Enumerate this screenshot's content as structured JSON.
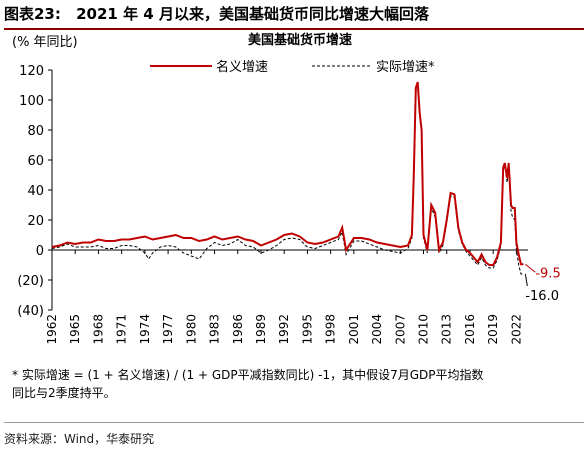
{
  "header": {
    "figure_label": "图表23:",
    "figure_title": "2021 年 4 月以来，美国基础货币同比增速大幅回落"
  },
  "chart_data": {
    "type": "line",
    "title": "美国基础货币增速",
    "ylabel": "(% 年同比)",
    "ylim": [
      -40,
      120
    ],
    "yticks": [
      120,
      100,
      80,
      60,
      40,
      20,
      0,
      -20,
      -40
    ],
    "ytick_labels": [
      "120",
      "100",
      "80",
      "60",
      "40",
      "20",
      "0",
      "(20)",
      "(40)"
    ],
    "xlim": [
      1962,
      2023.5
    ],
    "xticks": [
      1962,
      1965,
      1968,
      1971,
      1974,
      1977,
      1980,
      1983,
      1986,
      1989,
      1992,
      1995,
      1998,
      2001,
      2004,
      2007,
      2010,
      2013,
      2016,
      2019,
      2022
    ],
    "grid": false,
    "legend": "top",
    "series": [
      {
        "name": "名义增速",
        "color": "#c00000",
        "style": "solid",
        "x": [
          1962,
          1963,
          1964,
          1965,
          1966,
          1967,
          1968,
          1969,
          1970,
          1971,
          1972,
          1973,
          1974,
          1974.5,
          1975,
          1976,
          1977,
          1978,
          1979,
          1980,
          1981,
          1982,
          1983,
          1984,
          1985,
          1986,
          1987,
          1988,
          1989,
          1990,
          1991,
          1992,
          1993,
          1994,
          1995,
          1996,
          1997,
          1998,
          1999,
          1999.5,
          2000,
          2001,
          2002,
          2003,
          2004,
          2005,
          2006,
          2007,
          2008,
          2008.5,
          2008.75,
          2009.0,
          2009.25,
          2009.5,
          2009.75,
          2010,
          2010.5,
          2011,
          2011.5,
          2012,
          2012.5,
          2013,
          2013.5,
          2014,
          2014.5,
          2015,
          2015.5,
          2016,
          2016.5,
          2017,
          2017.5,
          2018,
          2018.5,
          2019,
          2019.5,
          2020,
          2020.3,
          2020.5,
          2020.8,
          2021,
          2021.3,
          2021.5,
          2021.8,
          2022,
          2022.3,
          2022.6,
          2022.9
        ],
        "y": [
          2,
          3,
          5,
          4,
          5,
          5,
          7,
          6,
          6,
          7,
          7,
          8,
          9,
          8,
          7,
          8,
          9,
          10,
          8,
          8,
          6,
          7,
          9,
          7,
          8,
          9,
          7,
          6,
          3,
          5,
          7,
          10,
          11,
          9,
          5,
          4,
          5,
          7,
          9,
          15,
          0,
          8,
          8,
          7,
          5,
          4,
          3,
          2,
          3,
          10,
          50,
          108,
          112,
          92,
          80,
          10,
          0,
          30,
          25,
          0,
          5,
          20,
          38,
          37,
          15,
          5,
          0,
          -2,
          -5,
          -8,
          -3,
          -8,
          -10,
          -10,
          -5,
          5,
          55,
          58,
          48,
          58,
          30,
          28,
          28,
          5,
          -3,
          -9.5,
          -9.5
        ]
      },
      {
        "name": "实际增速*",
        "color": "#000000",
        "style": "dashed",
        "x": [
          1962,
          1963,
          1964,
          1965,
          1966,
          1967,
          1968,
          1969,
          1970,
          1971,
          1972,
          1973,
          1974,
          1974.5,
          1975,
          1976,
          1977,
          1978,
          1979,
          1980,
          1981,
          1982,
          1983,
          1984,
          1985,
          1986,
          1987,
          1988,
          1989,
          1990,
          1991,
          1992,
          1993,
          1994,
          1995,
          1996,
          1997,
          1998,
          1999,
          1999.5,
          2000,
          2001,
          2002,
          2003,
          2004,
          2005,
          2006,
          2007,
          2008,
          2008.5,
          2008.75,
          2009.0,
          2009.25,
          2009.5,
          2009.75,
          2010,
          2010.5,
          2011,
          2011.5,
          2012,
          2012.5,
          2013,
          2013.5,
          2014,
          2014.5,
          2015,
          2015.5,
          2016,
          2016.5,
          2017,
          2017.5,
          2018,
          2018.5,
          2019,
          2019.5,
          2020,
          2020.3,
          2020.5,
          2020.8,
          2021,
          2021.3,
          2021.5,
          2021.8,
          2022,
          2022.3,
          2022.6,
          2022.9
        ],
        "y": [
          1,
          2,
          4,
          2,
          2,
          2,
          3,
          1,
          1,
          3,
          3,
          2,
          -2,
          -6,
          -2,
          2,
          3,
          2,
          -2,
          -4,
          -6,
          1,
          5,
          3,
          4,
          7,
          3,
          2,
          -2,
          0,
          3,
          7,
          8,
          7,
          2,
          1,
          3,
          5,
          7,
          12,
          -3,
          6,
          6,
          4,
          2,
          0,
          -1,
          -2,
          1,
          8,
          48,
          105,
          108,
          90,
          78,
          8,
          -2,
          28,
          22,
          -2,
          3,
          18,
          36,
          35,
          13,
          4,
          -1,
          -4,
          -7,
          -10,
          -5,
          -10,
          -12,
          -12,
          -7,
          3,
          53,
          57,
          45,
          55,
          26,
          22,
          20,
          0,
          -10,
          -16,
          -16
        ]
      }
    ],
    "end_labels": {
      "nominal": "-9.5",
      "real": "-16.0"
    }
  },
  "footnote": {
    "line1": "* 实际增速 = (1 + 名义增速) / (1 + GDP平减指数同比) -1，其中假设7月GDP平均指数",
    "line2": "同比与2季度持平。"
  },
  "source": "资料来源：Wind，华泰研究"
}
